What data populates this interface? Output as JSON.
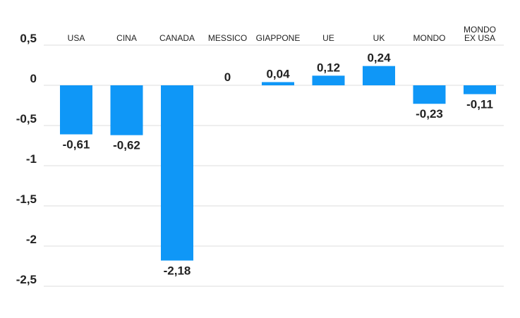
{
  "chart_data": {
    "type": "bar",
    "categories": [
      [
        "USA"
      ],
      [
        "CINA"
      ],
      [
        "CANADA"
      ],
      [
        "MESSICO"
      ],
      [
        "GIAPPONE"
      ],
      [
        "UE"
      ],
      [
        "UK"
      ],
      [
        "MONDO"
      ],
      [
        "MONDO",
        "EX USA"
      ]
    ],
    "values": [
      -0.61,
      -0.62,
      -2.18,
      0,
      0.04,
      0.12,
      0.24,
      -0.23,
      -0.11
    ],
    "data_labels": [
      "-0,61",
      "-0,62",
      "-2,18",
      "0",
      "0,04",
      "0,12",
      "0,24",
      "-0,23",
      "-0,11"
    ],
    "y_ticks": [
      0.5,
      0,
      -0.5,
      -1,
      -1.5,
      -2,
      -2.5
    ],
    "y_tick_labels": [
      "0,5",
      "0",
      "-0,5",
      "-1",
      "-1,5",
      "-2",
      "-2,5"
    ],
    "ylim": [
      -2.5,
      0.5
    ],
    "grid": true,
    "bar_color": "#0f97f7",
    "title": "",
    "xlabel": "",
    "ylabel": ""
  }
}
